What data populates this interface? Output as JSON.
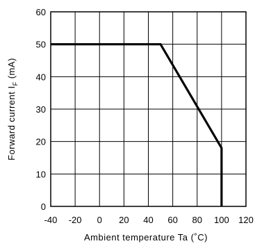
{
  "chart_data": {
    "type": "line",
    "xlabel": "Ambient temperature Ta (˚C)",
    "ylabel_main": "Forward current I",
    "ylabel_sub": "F",
    "ylabel_unit": " (mA)",
    "xlim": [
      -40,
      120
    ],
    "ylim": [
      0,
      60
    ],
    "xticks": [
      -40,
      -20,
      0,
      20,
      40,
      60,
      80,
      100,
      120
    ],
    "yticks": [
      0,
      10,
      20,
      30,
      40,
      50,
      60
    ],
    "grid": true,
    "series": [
      {
        "x": [
          -40,
          50,
          100,
          100
        ],
        "y": [
          50,
          50,
          18,
          0
        ]
      }
    ]
  }
}
